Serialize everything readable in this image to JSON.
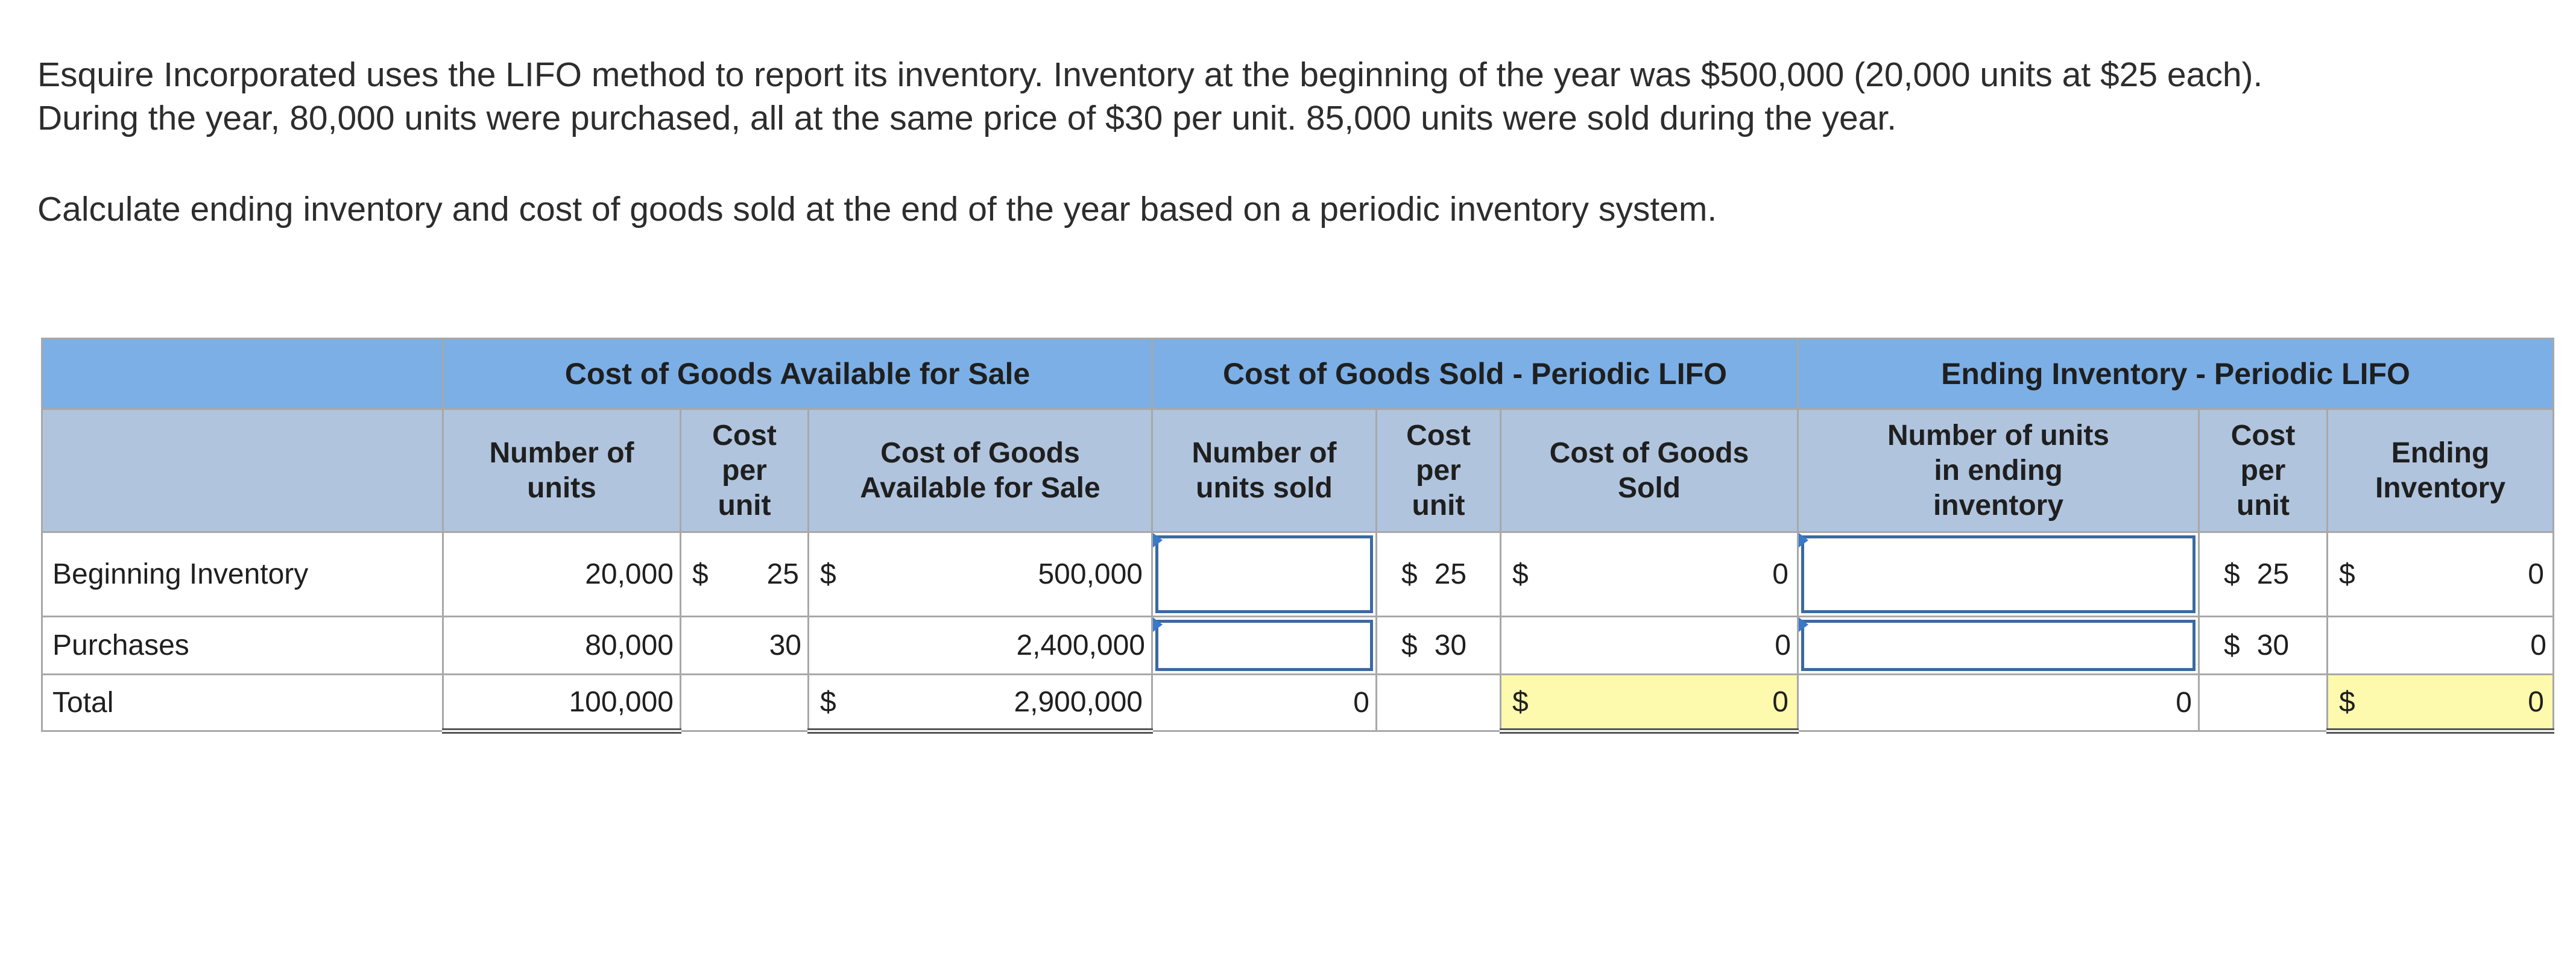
{
  "prompt": {
    "paragraph1": "Esquire Incorporated uses the LIFO method to report its inventory. Inventory at the beginning of the year was $500,000 (20,000 units at $25 each). During the year, 80,000 units were purchased, all at the same price of $30 per unit. 85,000 units were sold during the year.",
    "paragraph2": "Calculate ending inventory and cost of goods sold at the end of the year based on a periodic inventory system."
  },
  "table": {
    "groups": {
      "available": "Cost of Goods Available for Sale",
      "sold": "Cost of Goods Sold - Periodic LIFO",
      "ending": "Cost of Goods Sold - Periodic LIFO",
      "ending_inventory": "Ending Inventory - Periodic LIFO"
    },
    "headers": {
      "units": "Number of units",
      "cpu1": "Cost per unit",
      "cogafs": "Cost of Goods Available for Sale",
      "units_sold": "Number of units sold",
      "cpu2": "Cost per unit",
      "cogs": "Cost of Goods Sold",
      "units_end": "Number of units in ending inventory",
      "cpu3": "Cost per unit",
      "ending_inv": "Ending Inventory"
    },
    "rows": [
      {
        "label": "Beginning Inventory",
        "units": "20,000",
        "cpu1_sym": "$",
        "cpu1": "25",
        "cogafs_sym": "$",
        "cogafs": "500,000",
        "units_sold": "",
        "cpu2_sym": "$",
        "cpu2": "25",
        "cogs_sym": "$",
        "cogs": "0",
        "units_end": "",
        "cpu3_sym": "$",
        "cpu3": "25",
        "ei_sym": "$",
        "ei": "0"
      },
      {
        "label": "Purchases",
        "units": "80,000",
        "cpu1": "30",
        "cogafs": "2,400,000",
        "units_sold": "",
        "cpu2_sym": "$",
        "cpu2": "30",
        "cogs": "0",
        "units_end": "",
        "cpu3_sym": "$",
        "cpu3": "30",
        "ei": "0"
      },
      {
        "label": "Total",
        "units": "100,000",
        "cogafs_sym": "$",
        "cogafs": "2,900,000",
        "units_sold": "0",
        "cogs_sym": "$",
        "cogs": "0",
        "units_end": "0",
        "ei_sym": "$",
        "ei": "0"
      }
    ]
  },
  "colors": {
    "group_header_bg": "#7bafe6",
    "sub_header_bg": "#b0c4de",
    "highlight_bg": "#fdf9ad",
    "input_border": "#3a6aa0"
  }
}
